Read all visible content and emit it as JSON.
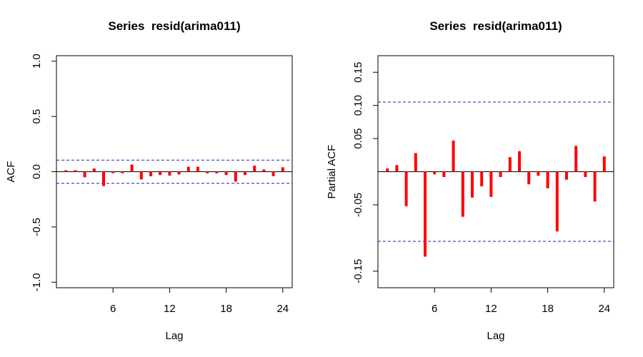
{
  "chart_data": [
    {
      "type": "bar",
      "title": "Series  resid(arima011)",
      "xlabel": "Lag",
      "ylabel": "ACF",
      "xlim": [
        0,
        25
      ],
      "ylim": [
        -1.05,
        1.05
      ],
      "xticks": [
        6,
        12,
        18,
        24
      ],
      "yticks": [
        -1.0,
        -0.5,
        0.0,
        0.5,
        1.0
      ],
      "ytick_labels": [
        "-1.0",
        "-0.5",
        "0.0",
        "0.5",
        "1.0"
      ],
      "ci": 0.105,
      "x": [
        1,
        2,
        3,
        4,
        5,
        6,
        7,
        8,
        9,
        10,
        11,
        12,
        13,
        14,
        15,
        16,
        17,
        18,
        19,
        20,
        21,
        22,
        23,
        24
      ],
      "values": [
        0.005,
        0.01,
        -0.05,
        0.03,
        -0.13,
        -0.005,
        -0.01,
        0.065,
        -0.07,
        -0.04,
        -0.03,
        -0.035,
        -0.025,
        0.045,
        0.045,
        -0.015,
        -0.015,
        -0.03,
        -0.09,
        -0.03,
        0.055,
        0.02,
        -0.04,
        0.04
      ],
      "bar_color": "#ff0000",
      "ci_color": "#1f1fbf"
    },
    {
      "type": "bar",
      "title": "Series  resid(arima011)",
      "xlabel": "Lag",
      "ylabel": "Partial ACF",
      "xlim": [
        0,
        25
      ],
      "ylim": [
        -0.175,
        0.175
      ],
      "xticks": [
        6,
        12,
        18,
        24
      ],
      "yticks": [
        -0.15,
        -0.05,
        0.05,
        0.1,
        0.15
      ],
      "ytick_labels": [
        "-0.15",
        "-0.05",
        "0.05",
        "0.10",
        "0.15"
      ],
      "ci": 0.105,
      "x": [
        1,
        2,
        3,
        4,
        5,
        6,
        7,
        8,
        9,
        10,
        11,
        12,
        13,
        14,
        15,
        16,
        17,
        18,
        19,
        20,
        21,
        22,
        23,
        24
      ],
      "values": [
        0.005,
        0.01,
        -0.052,
        0.028,
        -0.128,
        -0.004,
        -0.008,
        0.047,
        -0.068,
        -0.039,
        -0.022,
        -0.038,
        -0.008,
        0.022,
        0.031,
        -0.019,
        -0.006,
        -0.025,
        -0.09,
        -0.012,
        0.039,
        -0.008,
        -0.045,
        0.023
      ],
      "bar_color": "#ff0000",
      "ci_color": "#1f1fbf"
    }
  ]
}
